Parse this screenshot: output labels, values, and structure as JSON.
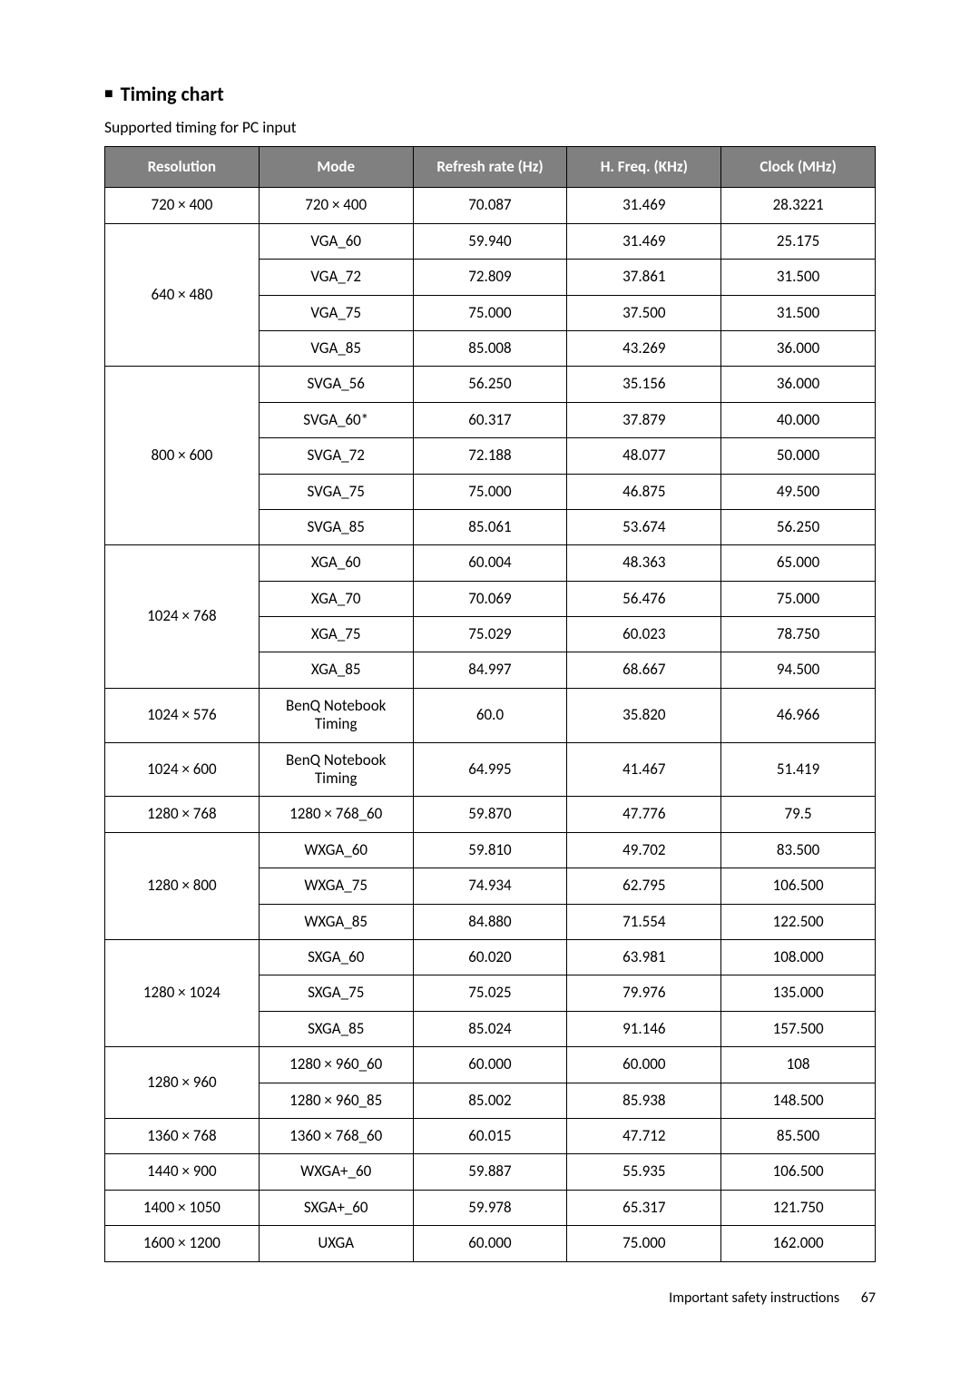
{
  "heading": "Timing chart",
  "subheading": "Supported timing for PC input",
  "columns": [
    "Resolution",
    "Mode",
    "Refresh rate (Hz)",
    "H. Freq. (KHz)",
    "Clock (MHz)"
  ],
  "groups": [
    {
      "resolution": "720 × 400",
      "rows": [
        {
          "mode": "720 × 400",
          "refresh": "70.087",
          "hfreq": "31.469",
          "clock": "28.3221"
        }
      ]
    },
    {
      "resolution": "640 × 480",
      "rows": [
        {
          "mode": "VGA_60",
          "refresh": "59.940",
          "hfreq": "31.469",
          "clock": "25.175"
        },
        {
          "mode": "VGA_72",
          "refresh": "72.809",
          "hfreq": "37.861",
          "clock": "31.500"
        },
        {
          "mode": "VGA_75",
          "refresh": "75.000",
          "hfreq": "37.500",
          "clock": "31.500"
        },
        {
          "mode": "VGA_85",
          "refresh": "85.008",
          "hfreq": "43.269",
          "clock": "36.000"
        }
      ]
    },
    {
      "resolution": "800 × 600",
      "rows": [
        {
          "mode": "SVGA_56",
          "refresh": "56.250",
          "hfreq": "35.156",
          "clock": "36.000"
        },
        {
          "mode": "SVGA_60*",
          "refresh": "60.317",
          "hfreq": "37.879",
          "clock": "40.000"
        },
        {
          "mode": "SVGA_72",
          "refresh": "72.188",
          "hfreq": "48.077",
          "clock": "50.000"
        },
        {
          "mode": "SVGA_75",
          "refresh": "75.000",
          "hfreq": "46.875",
          "clock": "49.500"
        },
        {
          "mode": "SVGA_85",
          "refresh": "85.061",
          "hfreq": "53.674",
          "clock": "56.250"
        }
      ]
    },
    {
      "resolution": "1024 × 768",
      "rows": [
        {
          "mode": "XGA_60",
          "refresh": "60.004",
          "hfreq": "48.363",
          "clock": "65.000"
        },
        {
          "mode": "XGA_70",
          "refresh": "70.069",
          "hfreq": "56.476",
          "clock": "75.000"
        },
        {
          "mode": "XGA_75",
          "refresh": "75.029",
          "hfreq": "60.023",
          "clock": "78.750"
        },
        {
          "mode": "XGA_85",
          "refresh": "84.997",
          "hfreq": "68.667",
          "clock": "94.500"
        }
      ]
    },
    {
      "resolution": "1024 × 576",
      "rows": [
        {
          "mode": "BenQ Notebook Timing",
          "refresh": "60.0",
          "hfreq": "35.820",
          "clock": "46.966"
        }
      ]
    },
    {
      "resolution": "1024 × 600",
      "rows": [
        {
          "mode": "BenQ Notebook Timing",
          "refresh": "64.995",
          "hfreq": "41.467",
          "clock": "51.419"
        }
      ]
    },
    {
      "resolution": "1280 × 768",
      "rows": [
        {
          "mode": "1280 × 768_60",
          "refresh": "59.870",
          "hfreq": "47.776",
          "clock": "79.5"
        }
      ]
    },
    {
      "resolution": "1280 × 800",
      "rows": [
        {
          "mode": "WXGA_60",
          "refresh": "59.810",
          "hfreq": "49.702",
          "clock": "83.500"
        },
        {
          "mode": "WXGA_75",
          "refresh": "74.934",
          "hfreq": "62.795",
          "clock": "106.500"
        },
        {
          "mode": "WXGA_85",
          "refresh": "84.880",
          "hfreq": "71.554",
          "clock": "122.500"
        }
      ]
    },
    {
      "resolution": "1280 × 1024",
      "rows": [
        {
          "mode": "SXGA_60",
          "refresh": "60.020",
          "hfreq": "63.981",
          "clock": "108.000"
        },
        {
          "mode": "SXGA_75",
          "refresh": "75.025",
          "hfreq": "79.976",
          "clock": "135.000"
        },
        {
          "mode": "SXGA_85",
          "refresh": "85.024",
          "hfreq": "91.146",
          "clock": "157.500"
        }
      ]
    },
    {
      "resolution": "1280 × 960",
      "rows": [
        {
          "mode": "1280 × 960_60",
          "refresh": "60.000",
          "hfreq": "60.000",
          "clock": "108"
        },
        {
          "mode": "1280 × 960_85",
          "refresh": "85.002",
          "hfreq": "85.938",
          "clock": "148.500"
        }
      ]
    },
    {
      "resolution": "1360 × 768",
      "rows": [
        {
          "mode": "1360 × 768_60",
          "refresh": "60.015",
          "hfreq": "47.712",
          "clock": "85.500"
        }
      ]
    },
    {
      "resolution": "1440 × 900",
      "rows": [
        {
          "mode": "WXGA+_60",
          "refresh": "59.887",
          "hfreq": "55.935",
          "clock": "106.500"
        }
      ]
    },
    {
      "resolution": "1400 × 1050",
      "rows": [
        {
          "mode": "SXGA+_60",
          "refresh": "59.978",
          "hfreq": "65.317",
          "clock": "121.750"
        }
      ]
    },
    {
      "resolution": "1600 × 1200",
      "rows": [
        {
          "mode": "UXGA",
          "refresh": "60.000",
          "hfreq": "75.000",
          "clock": "162.000"
        }
      ]
    }
  ],
  "footer": {
    "text": "Important safety instructions",
    "page": "67"
  }
}
